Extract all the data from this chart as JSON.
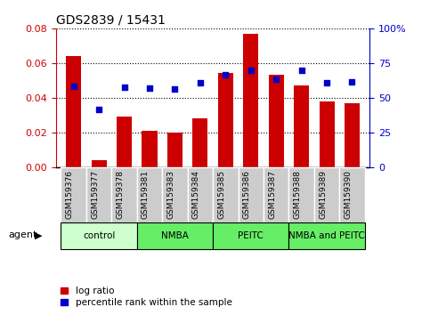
{
  "title": "GDS2839 / 15431",
  "samples": [
    "GSM159376",
    "GSM159377",
    "GSM159378",
    "GSM159381",
    "GSM159383",
    "GSM159384",
    "GSM159385",
    "GSM159386",
    "GSM159387",
    "GSM159388",
    "GSM159389",
    "GSM159390"
  ],
  "log_ratio": [
    0.064,
    0.004,
    0.029,
    0.021,
    0.02,
    0.028,
    0.054,
    0.077,
    0.053,
    0.047,
    0.038,
    0.037
  ],
  "percentile_rank": [
    58.5,
    41.5,
    57.5,
    57.0,
    56.5,
    60.5,
    66.5,
    70.0,
    63.0,
    69.5,
    60.5,
    61.5
  ],
  "group_info": [
    {
      "start": 0,
      "end": 3,
      "label": "control",
      "color": "#ccffcc"
    },
    {
      "start": 3,
      "end": 6,
      "label": "NMBA",
      "color": "#66ee66"
    },
    {
      "start": 6,
      "end": 9,
      "label": "PEITC",
      "color": "#66ee66"
    },
    {
      "start": 9,
      "end": 12,
      "label": "NMBA and PEITC",
      "color": "#66ee66"
    }
  ],
  "bar_color": "#cc0000",
  "dot_color": "#0000cc",
  "left_axis_color": "#cc0000",
  "right_axis_color": "#0000cc",
  "ylim_left": [
    0,
    0.08
  ],
  "ylim_right": [
    0,
    100
  ],
  "yticks_left": [
    0,
    0.02,
    0.04,
    0.06,
    0.08
  ],
  "yticks_right": [
    0,
    25,
    50,
    75,
    100
  ],
  "legend_log_ratio": "log ratio",
  "legend_percentile": "percentile rank within the sample",
  "xtick_bg": "#cccccc",
  "plot_bg": "#ffffff",
  "agent_label": "agent"
}
